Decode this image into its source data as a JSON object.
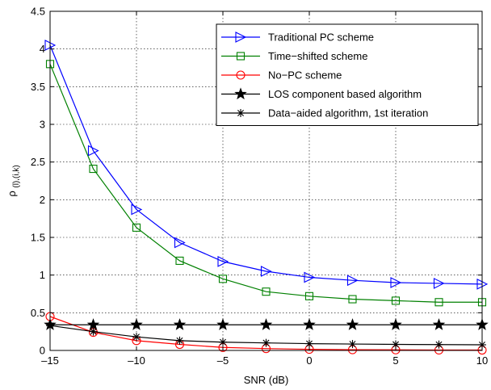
{
  "chart_data": {
    "type": "line",
    "xlabel": "SNR (dB)",
    "ylabel": "ρ(l),(i,k)",
    "ylabel_main": "ρ",
    "ylabel_sub": "(l),(i,k)",
    "xlim": [
      -15,
      10
    ],
    "ylim": [
      0,
      4.5
    ],
    "grid": true,
    "legend_position": "top-right",
    "x_ticks": [
      -15,
      -10,
      -5,
      0,
      5,
      10
    ],
    "x_tick_labels": [
      "–15",
      "–10",
      "–5",
      "0",
      "5",
      "10"
    ],
    "y_ticks": [
      0,
      0.5,
      1,
      1.5,
      2,
      2.5,
      3,
      3.5,
      4,
      4.5
    ],
    "y_tick_labels": [
      "0",
      "0.5",
      "1",
      "1.5",
      "2",
      "2.5",
      "3",
      "3.5",
      "4",
      "4.5"
    ],
    "x": [
      -15,
      -12.5,
      -10,
      -7.5,
      -5,
      -2.5,
      0,
      2.5,
      5,
      7.5,
      10
    ],
    "series": [
      {
        "name": "Traditional PC scheme",
        "color": "#0000ff",
        "marker": "triangle-right",
        "values": [
          4.05,
          2.65,
          1.87,
          1.43,
          1.18,
          1.05,
          0.97,
          0.93,
          0.9,
          0.89,
          0.88
        ]
      },
      {
        "name": "Time−shifted scheme",
        "color": "#008000",
        "marker": "square",
        "values": [
          3.8,
          2.41,
          1.63,
          1.19,
          0.95,
          0.78,
          0.72,
          0.68,
          0.66,
          0.64,
          0.64
        ]
      },
      {
        "name": "No−PC scheme",
        "color": "#ff0000",
        "marker": "circle",
        "values": [
          0.45,
          0.24,
          0.13,
          0.08,
          0.04,
          0.025,
          0.015,
          0.01,
          0.008,
          0.006,
          0.005
        ]
      },
      {
        "name": "LOS component based algorithm",
        "color": "#000000",
        "marker": "pentagram",
        "values": [
          0.34,
          0.34,
          0.34,
          0.34,
          0.34,
          0.34,
          0.34,
          0.34,
          0.34,
          0.34,
          0.34
        ]
      },
      {
        "name": "Data−aided algorithm, 1st iteration",
        "color": "#000000",
        "marker": "asterisk",
        "values": [
          0.33,
          0.25,
          0.18,
          0.13,
          0.11,
          0.1,
          0.09,
          0.085,
          0.08,
          0.078,
          0.075
        ]
      }
    ]
  }
}
